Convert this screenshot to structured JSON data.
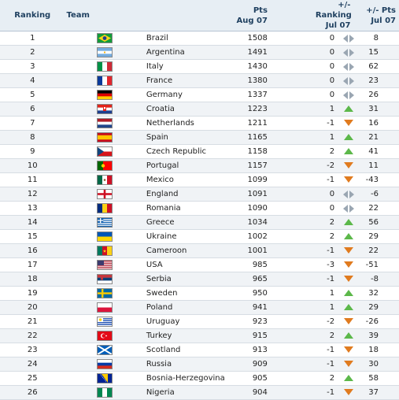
{
  "header": {
    "ranking": "Ranking",
    "team": "Team",
    "pts_top": "Pts",
    "pts_bottom": "Aug 07",
    "chg_top": "+/- Ranking",
    "chg_bottom": "Jul 07",
    "ptsd_top": "+/- Pts",
    "ptsd_bottom": "Jul 07"
  },
  "colors": {
    "up": "#5cb84a",
    "down": "#e07b1f",
    "same": "#9aa6b2"
  },
  "rows": [
    {
      "rank": "1",
      "team": "Brazil",
      "flag": "brazil-flag-icon",
      "pts": "1508",
      "chg": "0",
      "trend": "same",
      "ptsd": "8"
    },
    {
      "rank": "2",
      "team": "Argentina",
      "flag": "argentina-flag-icon",
      "pts": "1491",
      "chg": "0",
      "trend": "same",
      "ptsd": "15"
    },
    {
      "rank": "3",
      "team": "Italy",
      "flag": "italy-flag-icon",
      "pts": "1430",
      "chg": "0",
      "trend": "same",
      "ptsd": "62"
    },
    {
      "rank": "4",
      "team": "France",
      "flag": "france-flag-icon",
      "pts": "1380",
      "chg": "0",
      "trend": "same",
      "ptsd": "23"
    },
    {
      "rank": "5",
      "team": "Germany",
      "flag": "germany-flag-icon",
      "pts": "1337",
      "chg": "0",
      "trend": "same",
      "ptsd": "26"
    },
    {
      "rank": "6",
      "team": "Croatia",
      "flag": "croatia-flag-icon",
      "pts": "1223",
      "chg": "1",
      "trend": "up",
      "ptsd": "31"
    },
    {
      "rank": "7",
      "team": "Netherlands",
      "flag": "netherlands-flag-icon",
      "pts": "1211",
      "chg": "-1",
      "trend": "down",
      "ptsd": "16"
    },
    {
      "rank": "8",
      "team": "Spain",
      "flag": "spain-flag-icon",
      "pts": "1165",
      "chg": "1",
      "trend": "up",
      "ptsd": "21"
    },
    {
      "rank": "9",
      "team": "Czech Republic",
      "flag": "czech-republic-flag-icon",
      "pts": "1158",
      "chg": "2",
      "trend": "up",
      "ptsd": "41"
    },
    {
      "rank": "10",
      "team": "Portugal",
      "flag": "portugal-flag-icon",
      "pts": "1157",
      "chg": "-2",
      "trend": "down",
      "ptsd": "11"
    },
    {
      "rank": "11",
      "team": "Mexico",
      "flag": "mexico-flag-icon",
      "pts": "1099",
      "chg": "-1",
      "trend": "down",
      "ptsd": "-43"
    },
    {
      "rank": "12",
      "team": "England",
      "flag": "england-flag-icon",
      "pts": "1091",
      "chg": "0",
      "trend": "same",
      "ptsd": "-6"
    },
    {
      "rank": "13",
      "team": "Romania",
      "flag": "romania-flag-icon",
      "pts": "1090",
      "chg": "0",
      "trend": "same",
      "ptsd": "22"
    },
    {
      "rank": "14",
      "team": "Greece",
      "flag": "greece-flag-icon",
      "pts": "1034",
      "chg": "2",
      "trend": "up",
      "ptsd": "56"
    },
    {
      "rank": "15",
      "team": "Ukraine",
      "flag": "ukraine-flag-icon",
      "pts": "1002",
      "chg": "2",
      "trend": "up",
      "ptsd": "29"
    },
    {
      "rank": "16",
      "team": "Cameroon",
      "flag": "cameroon-flag-icon",
      "pts": "1001",
      "chg": "-1",
      "trend": "down",
      "ptsd": "22"
    },
    {
      "rank": "17",
      "team": "USA",
      "flag": "usa-flag-icon",
      "pts": "985",
      "chg": "-3",
      "trend": "down",
      "ptsd": "-51"
    },
    {
      "rank": "18",
      "team": "Serbia",
      "flag": "serbia-flag-icon",
      "pts": "965",
      "chg": "-1",
      "trend": "down",
      "ptsd": "-8"
    },
    {
      "rank": "19",
      "team": "Sweden",
      "flag": "sweden-flag-icon",
      "pts": "950",
      "chg": "1",
      "trend": "up",
      "ptsd": "32"
    },
    {
      "rank": "20",
      "team": "Poland",
      "flag": "poland-flag-icon",
      "pts": "941",
      "chg": "1",
      "trend": "up",
      "ptsd": "29"
    },
    {
      "rank": "21",
      "team": "Uruguay",
      "flag": "uruguay-flag-icon",
      "pts": "923",
      "chg": "-2",
      "trend": "down",
      "ptsd": "-26"
    },
    {
      "rank": "22",
      "team": "Turkey",
      "flag": "turkey-flag-icon",
      "pts": "915",
      "chg": "2",
      "trend": "up",
      "ptsd": "39"
    },
    {
      "rank": "23",
      "team": "Scotland",
      "flag": "scotland-flag-icon",
      "pts": "913",
      "chg": "-1",
      "trend": "down",
      "ptsd": "18"
    },
    {
      "rank": "24",
      "team": "Russia",
      "flag": "russia-flag-icon",
      "pts": "909",
      "chg": "-1",
      "trend": "down",
      "ptsd": "30"
    },
    {
      "rank": "25",
      "team": "Bosnia-Herzegovina",
      "flag": "bosnia-herzegovina-flag-icon",
      "pts": "905",
      "chg": "2",
      "trend": "up",
      "ptsd": "58"
    },
    {
      "rank": "26",
      "team": "Nigeria",
      "flag": "nigeria-flag-icon",
      "pts": "904",
      "chg": "-1",
      "trend": "down",
      "ptsd": "37"
    }
  ]
}
